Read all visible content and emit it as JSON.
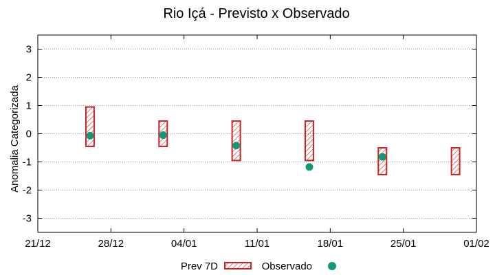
{
  "chart_data": {
    "type": "range-bar-with-points",
    "title": "Rio Içá - Previsto x Observado",
    "xlabel": "",
    "ylabel": "Anomalia Categorizada",
    "ylim": [
      -3.5,
      3.5
    ],
    "yticks": [
      3,
      2,
      1,
      0,
      -1,
      -2,
      -3
    ],
    "ytick_labels": [
      "3",
      "2",
      "1",
      "0",
      "-1",
      "-2",
      "-3"
    ],
    "xlim_days": [
      0,
      42
    ],
    "xticks": [
      {
        "day": 0,
        "label": "21/12"
      },
      {
        "day": 7,
        "label": "28/12"
      },
      {
        "day": 14,
        "label": "04/01"
      },
      {
        "day": 21,
        "label": "11/01"
      },
      {
        "day": 28,
        "label": "18/01"
      },
      {
        "day": 35,
        "label": "25/01"
      },
      {
        "day": 42,
        "label": "01/02"
      }
    ],
    "grid": true,
    "series": [
      {
        "name": "Prev 7D",
        "kind": "range",
        "color": "#cc2222",
        "points": [
          {
            "day": 5,
            "low": -0.45,
            "high": 0.95
          },
          {
            "day": 12,
            "low": -0.45,
            "high": 0.45
          },
          {
            "day": 19,
            "low": -0.95,
            "high": 0.45
          },
          {
            "day": 26,
            "low": -0.95,
            "high": 0.45
          },
          {
            "day": 33,
            "low": -1.45,
            "high": -0.5
          },
          {
            "day": 40,
            "low": -1.45,
            "high": -0.5
          }
        ]
      },
      {
        "name": "Observado",
        "kind": "point",
        "color": "#119977",
        "points": [
          {
            "day": 5,
            "value": -0.07
          },
          {
            "day": 12,
            "value": -0.05
          },
          {
            "day": 19,
            "value": -0.42
          },
          {
            "day": 26,
            "value": -1.18
          },
          {
            "day": 33,
            "value": -0.82
          }
        ]
      }
    ],
    "legend": {
      "position": "bottom-center"
    }
  }
}
